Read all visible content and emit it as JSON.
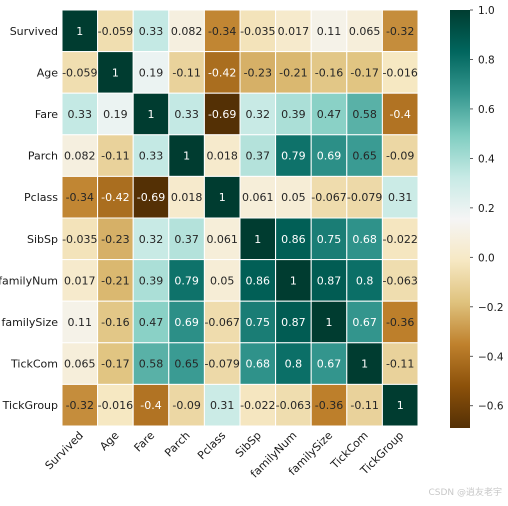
{
  "chart_data": {
    "type": "heatmap",
    "title": "",
    "xlabel": "",
    "ylabel": "",
    "labels": [
      "Survived",
      "Age",
      "Fare",
      "Parch",
      "Pclass",
      "SibSp",
      "familyNum",
      "familySize",
      "TickCom",
      "TickGroup"
    ],
    "matrix": [
      [
        1,
        -0.059,
        0.33,
        0.082,
        -0.34,
        -0.035,
        0.017,
        0.11,
        0.065,
        -0.32
      ],
      [
        -0.059,
        1,
        0.19,
        -0.11,
        -0.42,
        -0.23,
        -0.21,
        -0.16,
        -0.17,
        -0.016
      ],
      [
        0.33,
        0.19,
        1,
        0.33,
        -0.69,
        0.32,
        0.39,
        0.47,
        0.58,
        -0.4
      ],
      [
        0.082,
        -0.11,
        0.33,
        1,
        0.018,
        0.37,
        0.79,
        0.69,
        0.65,
        -0.09
      ],
      [
        -0.34,
        -0.42,
        -0.69,
        0.018,
        1,
        0.061,
        0.05,
        -0.067,
        -0.079,
        0.31
      ],
      [
        -0.035,
        -0.23,
        0.32,
        0.37,
        0.061,
        1,
        0.86,
        0.75,
        0.68,
        -0.022
      ],
      [
        0.017,
        -0.21,
        0.39,
        0.79,
        0.05,
        0.86,
        1,
        0.87,
        0.8,
        -0.063
      ],
      [
        0.11,
        -0.16,
        0.47,
        0.69,
        -0.067,
        0.75,
        0.87,
        1,
        0.67,
        -0.36
      ],
      [
        0.065,
        -0.17,
        0.58,
        0.65,
        -0.079,
        0.68,
        0.8,
        0.67,
        1,
        -0.11
      ],
      [
        -0.32,
        -0.016,
        -0.4,
        -0.09,
        0.31,
        -0.022,
        -0.063,
        -0.36,
        -0.11,
        1
      ]
    ],
    "colormap": "BrBG",
    "colorbar": {
      "min": -0.69,
      "max": 1,
      "ticks": [
        1.0,
        0.8,
        0.6,
        0.4,
        0.2,
        0.0,
        -0.2,
        -0.4,
        -0.6
      ]
    },
    "annotations": true,
    "cell_lines": "white"
  },
  "watermark": "CSDN @逍友老宇"
}
